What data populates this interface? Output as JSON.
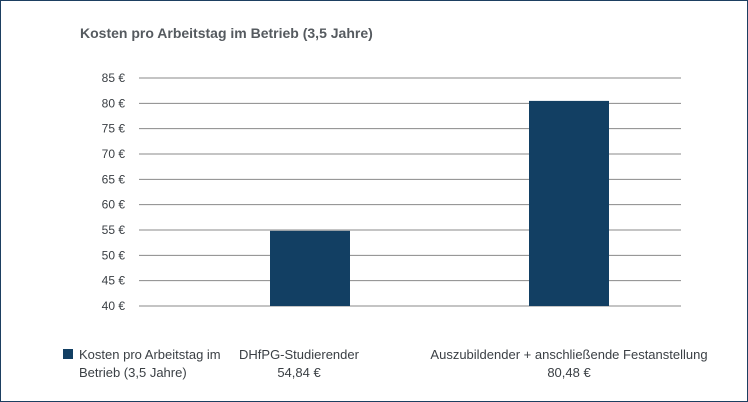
{
  "chart_data": {
    "type": "bar",
    "title": "Kosten pro Arbeitstag im Betrieb (3,5 Jahre)",
    "categories": [
      "DHfPG-Studierender",
      "Auszubildender + anschließende Festanstellung"
    ],
    "series": [
      {
        "name": "Kosten pro Arbeitstag im Betrieb (3,5 Jahre)",
        "values": [
          54.84,
          80.48
        ],
        "value_labels": [
          "54,84 €",
          "80,48 €"
        ]
      }
    ],
    "ylim": [
      40,
      85
    ],
    "yticks": [
      40,
      45,
      50,
      55,
      60,
      65,
      70,
      75,
      80,
      85
    ],
    "ytick_labels": [
      "40 €",
      "45 €",
      "50 €",
      "55 €",
      "60 €",
      "65 €",
      "70 €",
      "75 €",
      "80 €",
      "85 €"
    ],
    "grid": true,
    "legend_position": "bottom-left",
    "colors": {
      "bar": "#123f63",
      "grid": "#8a8a8a",
      "text": "#3a3f44",
      "title": "#555a5f"
    }
  }
}
